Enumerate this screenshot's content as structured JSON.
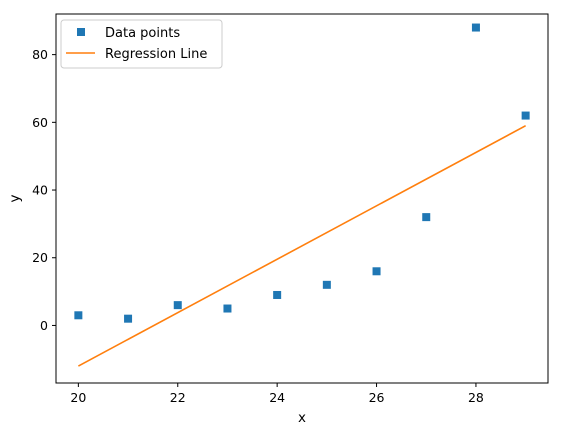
{
  "chart_data": {
    "type": "scatter",
    "xlabel": "x",
    "ylabel": "y",
    "xlim": [
      19.55,
      29.45
    ],
    "ylim": [
      -17,
      92
    ],
    "xticks": [
      20,
      22,
      24,
      26,
      28
    ],
    "yticks": [
      0,
      20,
      40,
      60,
      80
    ],
    "grid": false,
    "legend_position": "top-left",
    "series": [
      {
        "name": "Data points",
        "kind": "scatter",
        "marker": "square",
        "color": "#1f77b4",
        "x": [
          20,
          21,
          22,
          23,
          24,
          25,
          26,
          27,
          28,
          29
        ],
        "y": [
          3,
          2,
          6,
          5,
          9,
          12,
          16,
          32,
          88,
          62
        ]
      },
      {
        "name": "Regression Line",
        "kind": "line",
        "color": "#ff7f0e",
        "x": [
          20,
          29
        ],
        "y": [
          -12,
          59
        ]
      }
    ]
  }
}
